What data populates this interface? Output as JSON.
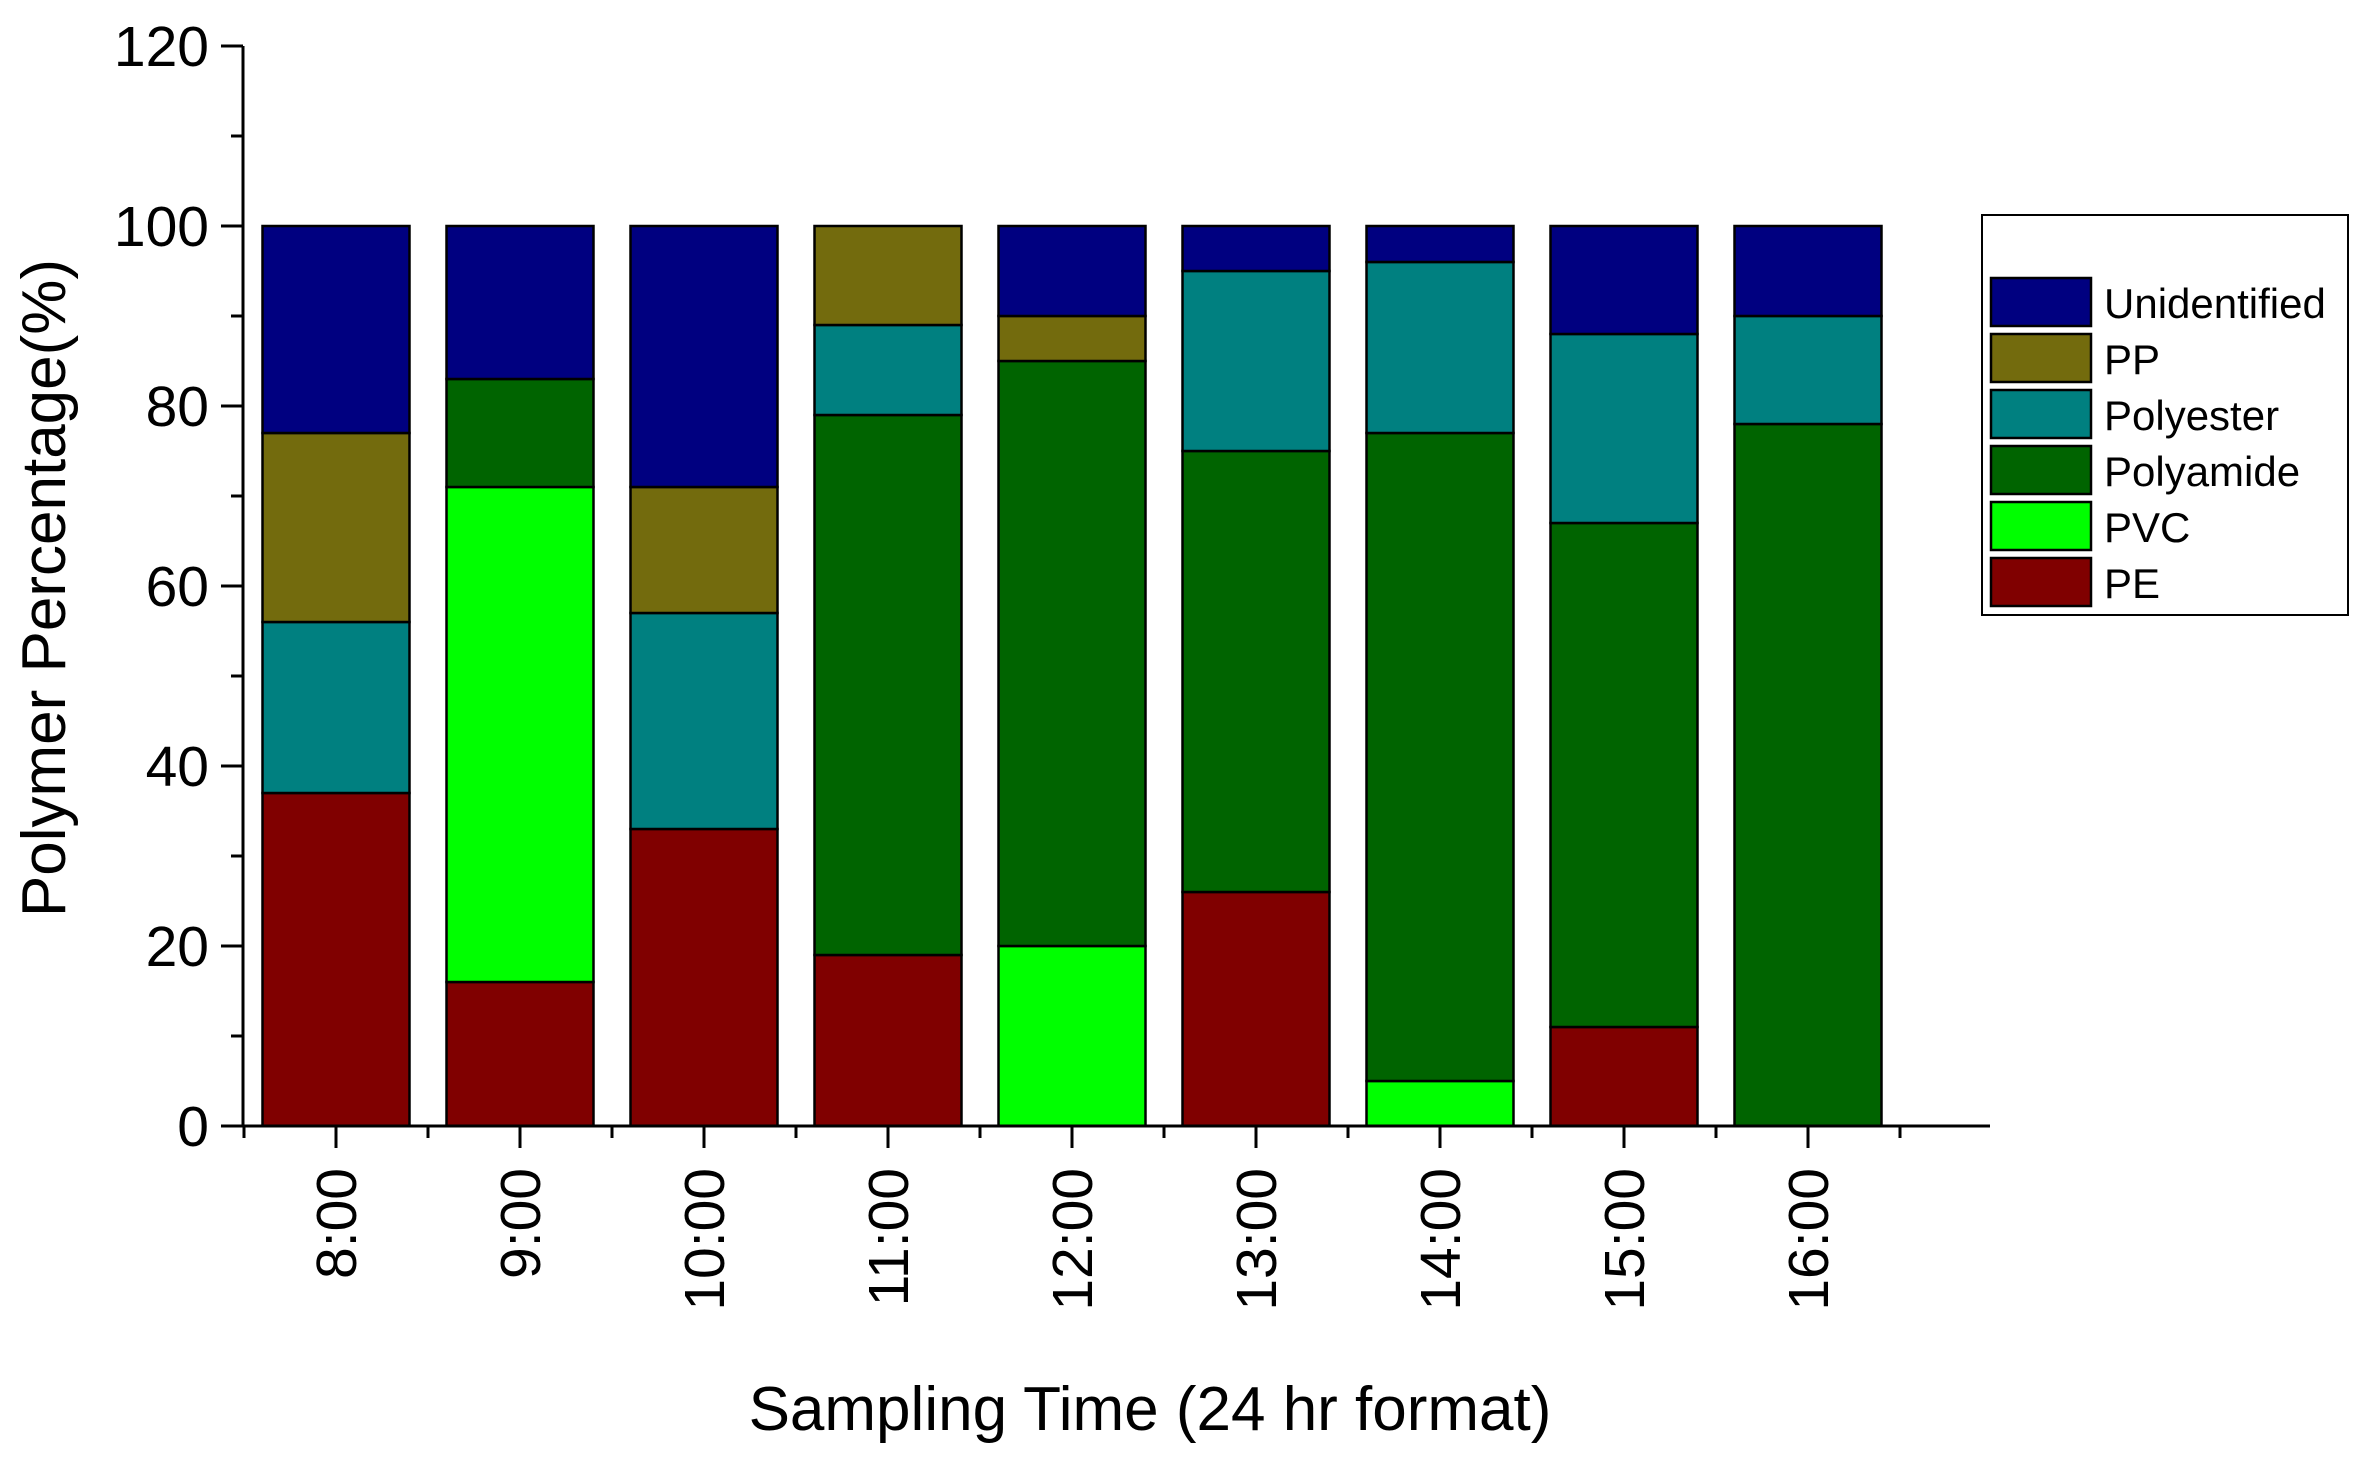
{
  "chart_data": {
    "type": "bar",
    "stacked": true,
    "categories": [
      "8:00",
      "9:00",
      "10:00",
      "11:00",
      "12:00",
      "13:00",
      "14:00",
      "15:00",
      "16:00"
    ],
    "series": [
      {
        "name": "PE",
        "color": "#800000",
        "values": [
          37,
          16,
          33,
          19,
          0,
          26,
          0,
          11,
          0
        ]
      },
      {
        "name": "PVC",
        "color": "#00ff00",
        "values": [
          0,
          55,
          0,
          0,
          20,
          0,
          5,
          0,
          0
        ]
      },
      {
        "name": "Polyamide",
        "color": "#006400",
        "values": [
          0,
          12,
          0,
          60,
          65,
          49,
          72,
          56,
          78
        ]
      },
      {
        "name": "Polyester",
        "color": "#008080",
        "values": [
          19,
          0,
          24,
          10,
          0,
          20,
          19,
          21,
          12
        ]
      },
      {
        "name": "PP",
        "color": "#736b0d",
        "values": [
          21,
          0,
          14,
          11,
          5,
          0,
          0,
          0,
          0
        ]
      },
      {
        "name": "Unidentified",
        "color": "#000080",
        "values": [
          23,
          17,
          29,
          0,
          10,
          5,
          4,
          12,
          10
        ]
      }
    ],
    "legend_order": [
      "Unidentified",
      "PP",
      "Polyester",
      "Polyamide",
      "PVC",
      "PE"
    ],
    "xlabel": "Sampling Time (24 hr format)",
    "ylabel": "Polymer Percentage(%)",
    "ylim": [
      0,
      120
    ],
    "yticks": [
      "0",
      "20",
      "40",
      "60",
      "80",
      "100",
      "120"
    ],
    "grid": false,
    "legend_position": "right"
  }
}
